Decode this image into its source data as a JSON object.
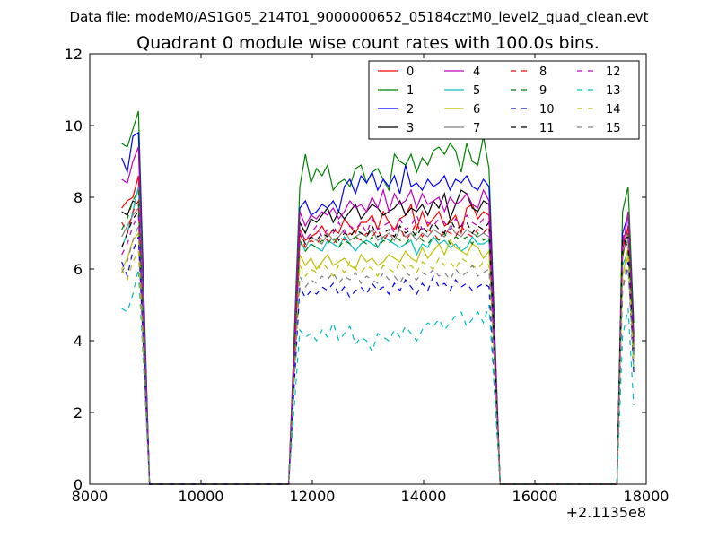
{
  "chart_data": {
    "type": "line",
    "suptitle": "Data file: modeM0/AS1G05_214T01_9000000652_05184cztM0_level2_quad_clean.evt",
    "title": "Quadrant 0 module wise count rates with 100.0s bins.",
    "xlabel": "",
    "ylabel": "",
    "x_offset_label": "+2.1135e8",
    "xlim": [
      8000,
      18000
    ],
    "ylim": [
      0,
      12
    ],
    "x_ticks": [
      8000,
      10000,
      12000,
      14000,
      16000,
      18000
    ],
    "y_ticks": [
      0,
      2,
      4,
      6,
      8,
      10,
      12
    ],
    "grid": false,
    "legend_position": "top-right",
    "legend_columns": 4,
    "segments": [
      {
        "x_start": 8575,
        "x_end": 8875,
        "drop_x": 9075
      },
      {
        "x_start": 11775,
        "x_end": 15175,
        "rise_x": 11575,
        "drop_x": 15375
      },
      {
        "x_start": 17575,
        "x_end": 17775,
        "rise_x": 17475
      }
    ],
    "series": [
      {
        "name": "0",
        "color": "#ff0000",
        "dashed": false,
        "segments": [
          [
            7.7,
            7.9,
            8.0,
            8.6
          ],
          [
            7.1,
            6.8,
            6.9,
            7.0,
            7.2,
            6.9,
            7.1,
            7.0,
            7.4,
            7.2,
            7.0,
            7.3,
            7.3,
            7.5,
            7.1,
            7.6,
            7.3,
            7.1,
            7.4,
            7.5,
            7.8,
            7.1,
            7.6,
            7.2,
            7.4,
            7.6,
            7.2,
            7.3,
            7.5,
            7.0,
            7.7,
            7.8,
            7.4,
            7.6,
            7.5
          ],
          [
            6.3,
            7.2,
            4.0
          ]
        ]
      },
      {
        "name": "1",
        "color": "#008000",
        "dashed": false,
        "segments": [
          [
            9.5,
            9.4,
            9.9,
            10.4
          ],
          [
            8.3,
            9.2,
            8.4,
            8.8,
            8.6,
            8.9,
            8.2,
            8.4,
            8.5,
            8.3,
            8.8,
            8.9,
            8.4,
            8.7,
            8.8,
            8.5,
            8.2,
            9.2,
            9.0,
            8.9,
            9.2,
            8.7,
            9.1,
            8.9,
            9.3,
            9.4,
            9.2,
            9.5,
            9.3,
            8.7,
            9.5,
            9.0,
            8.9,
            9.7,
            8.8
          ],
          [
            7.6,
            8.3,
            4.5
          ]
        ]
      },
      {
        "name": "2",
        "color": "#0000ff",
        "dashed": false,
        "segments": [
          [
            9.1,
            8.7,
            9.7,
            9.8
          ],
          [
            7.7,
            7.9,
            7.5,
            7.6,
            7.8,
            7.7,
            7.9,
            7.6,
            8.3,
            8.5,
            8.1,
            8.6,
            8.4,
            8.7,
            8.2,
            8.5,
            8.3,
            8.6,
            8.1,
            8.9,
            8.3,
            8.4,
            8.2,
            8.5,
            8.3,
            8.4,
            8.6,
            8.2,
            8.5,
            8.4,
            8.6,
            8.3,
            8.2,
            8.5,
            8.3
          ],
          [
            7.0,
            7.5,
            4.2
          ]
        ]
      },
      {
        "name": "3",
        "color": "#000000",
        "dashed": false,
        "segments": [
          [
            7.6,
            7.5,
            7.9,
            7.8
          ],
          [
            7.3,
            7.0,
            7.4,
            7.3,
            7.5,
            7.7,
            7.3,
            7.6,
            7.4,
            7.6,
            7.8,
            7.4,
            7.6,
            7.8,
            7.7,
            7.5,
            7.6,
            7.7,
            7.9,
            7.5,
            7.7,
            7.6,
            7.8,
            7.5,
            7.9,
            7.7,
            8.1,
            7.4,
            7.8,
            8.2,
            8.1,
            7.7,
            7.6,
            7.9,
            7.8
          ],
          [
            6.8,
            6.9,
            4.1
          ]
        ]
      },
      {
        "name": "4",
        "color": "#bf00bf",
        "dashed": false,
        "segments": [
          [
            8.5,
            8.4,
            9.0,
            9.4
          ],
          [
            7.6,
            7.2,
            7.5,
            7.4,
            7.6,
            7.5,
            7.7,
            7.4,
            7.6,
            7.9,
            7.7,
            7.8,
            7.6,
            8.0,
            7.7,
            8.2,
            7.6,
            8.1,
            7.8,
            7.9,
            8.2,
            7.7,
            8.1,
            7.8,
            7.9,
            8.0,
            7.6,
            8.0,
            7.8,
            7.9,
            8.1,
            7.8,
            7.7,
            8.2,
            7.9
          ],
          [
            6.5,
            7.6,
            3.8
          ]
        ]
      },
      {
        "name": "5",
        "color": "#00bfbf",
        "dashed": false,
        "segments": [
          [
            6.6,
            7.0,
            7.6,
            8.3
          ],
          [
            6.8,
            6.5,
            6.7,
            6.6,
            6.5,
            6.8,
            6.7,
            6.6,
            6.9,
            6.7,
            6.5,
            6.7,
            6.8,
            6.7,
            6.6,
            6.9,
            6.8,
            6.7,
            6.6,
            6.7,
            6.8,
            6.4,
            6.7,
            6.6,
            6.9,
            6.7,
            6.8,
            6.6,
            6.7,
            6.5,
            6.6,
            6.9,
            6.7,
            6.7,
            6.8
          ],
          [
            6.1,
            6.5,
            3.2
          ]
        ]
      },
      {
        "name": "6",
        "color": "#bfbf00",
        "dashed": false,
        "segments": [
          [
            6.0,
            6.3,
            6.8,
            7.0
          ],
          [
            6.4,
            6.1,
            6.3,
            6.0,
            6.2,
            6.4,
            6.1,
            6.2,
            6.3,
            6.1,
            6.0,
            6.4,
            6.2,
            6.3,
            6.1,
            6.2,
            6.4,
            6.3,
            6.2,
            6.5,
            6.3,
            6.2,
            6.6,
            6.3,
            6.5,
            6.7,
            6.4,
            6.8,
            6.6,
            6.5,
            6.4,
            6.7,
            6.6,
            6.3,
            6.5
          ],
          [
            5.8,
            6.6,
            3.5
          ]
        ]
      },
      {
        "name": "7",
        "color": "#808080",
        "dashed": false,
        "segments": [
          [
            6.9,
            7.2,
            7.5,
            7.7
          ],
          [
            6.7,
            6.6,
            6.9,
            6.8,
            6.7,
            7.0,
            6.8,
            6.9,
            7.1,
            6.8,
            6.9,
            7.0,
            6.9,
            7.1,
            6.8,
            6.9,
            7.0,
            6.8,
            7.1,
            6.9,
            7.0,
            6.8,
            7.0,
            6.9,
            7.1,
            7.0,
            6.9,
            7.2,
            7.0,
            6.9,
            7.1,
            7.0,
            6.9,
            7.0,
            6.9
          ],
          [
            6.5,
            6.8,
            3.6
          ]
        ]
      },
      {
        "name": "8",
        "color": "#ff0000",
        "dashed": true,
        "segments": [
          [
            7.3,
            7.0,
            7.6,
            7.9
          ],
          [
            7.0,
            6.6,
            6.8,
            6.7,
            6.9,
            6.8,
            6.7,
            6.9,
            6.8,
            7.0,
            6.9,
            6.8,
            7.0,
            6.9,
            7.1,
            6.8,
            7.0,
            6.9,
            7.2,
            6.8,
            7.0,
            7.3,
            6.9,
            7.1,
            7.0,
            6.8,
            7.1,
            7.0,
            6.9,
            7.2,
            7.0,
            6.9,
            7.1,
            7.0,
            7.2
          ],
          [
            6.6,
            7.0,
            3.9
          ]
        ]
      },
      {
        "name": "9",
        "color": "#008000",
        "dashed": true,
        "segments": [
          [
            7.1,
            7.4,
            7.9,
            8.2
          ],
          [
            6.8,
            6.5,
            6.7,
            6.6,
            6.8,
            6.7,
            6.9,
            6.6,
            6.8,
            6.7,
            6.9,
            6.8,
            6.7,
            6.9,
            6.6,
            6.8,
            6.7,
            6.9,
            6.8,
            6.7,
            6.9,
            7.0,
            6.8,
            6.7,
            6.9,
            6.8,
            7.0,
            6.7,
            6.9,
            6.8,
            6.9,
            6.7,
            7.0,
            6.8,
            6.9
          ],
          [
            6.4,
            7.0,
            3.6
          ]
        ]
      },
      {
        "name": "10",
        "color": "#0000ff",
        "dashed": true,
        "segments": [
          [
            6.2,
            5.8,
            6.5,
            6.9
          ],
          [
            5.5,
            5.2,
            5.4,
            5.3,
            5.5,
            5.4,
            5.6,
            5.3,
            5.5,
            5.2,
            5.4,
            5.5,
            5.3,
            5.6,
            5.4,
            5.5,
            5.3,
            5.6,
            5.4,
            5.7,
            5.5,
            5.3,
            5.6,
            5.4,
            5.8,
            5.5,
            5.6,
            5.4,
            5.7,
            5.5,
            5.6,
            5.4,
            5.5,
            5.6,
            5.5
          ],
          [
            5.4,
            6.2,
            3.1
          ]
        ]
      },
      {
        "name": "11",
        "color": "#000000",
        "dashed": true,
        "segments": [
          [
            6.6,
            7.0,
            7.4,
            7.6
          ],
          [
            7.0,
            6.7,
            6.9,
            6.8,
            7.0,
            6.9,
            7.1,
            6.8,
            7.0,
            6.9,
            7.1,
            7.0,
            6.9,
            7.2,
            6.9,
            7.0,
            7.1,
            6.9,
            7.2,
            7.0,
            7.1,
            6.9,
            7.2,
            7.0,
            7.3,
            7.1,
            7.0,
            7.4,
            7.1,
            7.2,
            7.3,
            7.0,
            7.2,
            7.1,
            7.3
          ],
          [
            6.9,
            6.6,
            3.7
          ]
        ]
      },
      {
        "name": "12",
        "color": "#bf00bf",
        "dashed": true,
        "segments": [
          [
            6.4,
            6.7,
            7.2,
            7.5
          ],
          [
            7.1,
            6.8,
            7.0,
            7.2,
            6.9,
            7.1,
            7.0,
            7.3,
            7.0,
            7.2,
            7.1,
            7.3,
            7.0,
            7.4,
            7.1,
            7.2,
            7.3,
            7.0,
            7.4,
            7.1,
            7.2,
            7.5,
            7.1,
            7.3,
            7.2,
            7.4,
            7.3,
            7.1,
            7.4,
            7.2,
            7.5,
            7.3,
            7.2,
            7.4,
            7.3
          ],
          [
            6.8,
            7.4,
            4.0
          ]
        ]
      },
      {
        "name": "13",
        "color": "#00bfbf",
        "dashed": true,
        "segments": [
          [
            4.9,
            4.8,
            5.3,
            6.0
          ],
          [
            4.3,
            4.1,
            4.2,
            4.0,
            4.3,
            4.1,
            4.5,
            4.0,
            4.2,
            4.4,
            3.9,
            4.1,
            4.0,
            3.7,
            4.2,
            4.1,
            4.0,
            4.3,
            4.1,
            4.4,
            4.2,
            4.0,
            4.3,
            4.5,
            4.4,
            4.6,
            4.3,
            4.5,
            4.7,
            4.8,
            4.4,
            4.6,
            4.8,
            4.5,
            5.0
          ],
          [
            4.1,
            4.9,
            2.2
          ]
        ]
      },
      {
        "name": "14",
        "color": "#bfbf00",
        "dashed": true,
        "segments": [
          [
            6.0,
            5.7,
            6.2,
            6.5
          ],
          [
            6.1,
            5.8,
            6.0,
            5.9,
            6.2,
            6.0,
            5.8,
            6.1,
            5.9,
            6.2,
            6.0,
            5.9,
            6.1,
            6.0,
            5.8,
            6.1,
            6.0,
            5.9,
            6.2,
            6.0,
            6.1,
            5.9,
            6.2,
            6.1,
            6.0,
            6.3,
            6.1,
            6.2,
            6.0,
            6.3,
            6.2,
            6.1,
            6.0,
            6.2,
            6.1
          ],
          [
            5.6,
            6.4,
            3.3
          ]
        ]
      },
      {
        "name": "15",
        "color": "#808080",
        "dashed": true,
        "segments": [
          [
            5.9,
            6.2,
            6.8,
            7.2
          ],
          [
            5.8,
            5.5,
            5.7,
            5.6,
            5.8,
            5.7,
            5.9,
            5.6,
            5.8,
            5.7,
            5.9,
            5.6,
            5.8,
            5.7,
            5.6,
            5.9,
            5.7,
            5.8,
            5.6,
            5.9,
            5.8,
            5.7,
            5.9,
            5.8,
            6.0,
            5.8,
            5.9,
            5.7,
            6.0,
            5.8,
            5.9,
            6.1,
            5.8,
            5.9,
            6.0
          ],
          [
            5.5,
            6.0,
            3.4
          ]
        ]
      }
    ]
  }
}
